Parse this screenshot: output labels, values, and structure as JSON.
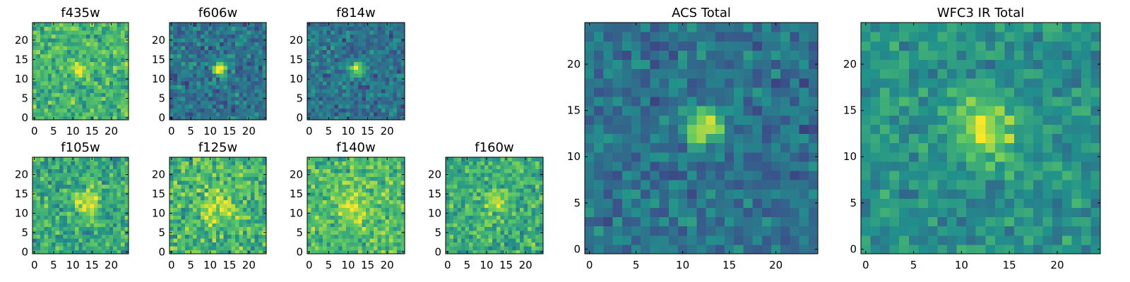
{
  "figure": {
    "description": "Multi-band cutouts of a source; viridis colormap heatmaps"
  },
  "colormap": {
    "name": "viridis",
    "stops": [
      "#440154",
      "#3b528b",
      "#21918c",
      "#5ec962",
      "#fde725"
    ]
  },
  "chart_data": [
    {
      "id": "f435w",
      "type": "heatmap",
      "title": "f435w",
      "size": 25,
      "xlim": [
        0,
        24
      ],
      "ylim": [
        0,
        24
      ],
      "xticks": [
        0,
        5,
        10,
        15,
        20
      ],
      "yticks": [
        0,
        5,
        10,
        15,
        20
      ],
      "peak": {
        "x": 12.5,
        "y": 12.5
      },
      "background": 0.66,
      "noise": 0.16,
      "amplitude": 0.33,
      "sigma": 1.6,
      "seed": 11
    },
    {
      "id": "f606w",
      "type": "heatmap",
      "title": "f606w",
      "size": 25,
      "xlim": [
        0,
        24
      ],
      "ylim": [
        0,
        24
      ],
      "xticks": [
        0,
        5,
        10,
        15,
        20
      ],
      "yticks": [
        0,
        5,
        10,
        15,
        20
      ],
      "peak": {
        "x": 12.5,
        "y": 12.8
      },
      "background": 0.38,
      "noise": 0.14,
      "amplitude": 0.6,
      "sigma": 1.3,
      "seed": 23
    },
    {
      "id": "f814w",
      "type": "heatmap",
      "title": "f814w",
      "size": 25,
      "xlim": [
        0,
        24
      ],
      "ylim": [
        0,
        24
      ],
      "xticks": [
        0,
        5,
        10,
        15,
        20
      ],
      "yticks": [
        0,
        5,
        10,
        15,
        20
      ],
      "peak": {
        "x": 12.3,
        "y": 12.8
      },
      "background": 0.38,
      "noise": 0.13,
      "amplitude": 0.6,
      "sigma": 1.3,
      "seed": 37
    },
    {
      "id": "f105w",
      "type": "heatmap",
      "title": "f105w",
      "size": 25,
      "xlim": [
        0,
        24
      ],
      "ylim": [
        0,
        24
      ],
      "xticks": [
        0,
        5,
        10,
        15,
        20
      ],
      "yticks": [
        0,
        5,
        10,
        15,
        20
      ],
      "peak": {
        "x": 13.5,
        "y": 13.0
      },
      "background": 0.6,
      "noise": 0.17,
      "amplitude": 0.35,
      "sigma": 2.5,
      "seed": 41
    },
    {
      "id": "f125w",
      "type": "heatmap",
      "title": "f125w",
      "size": 25,
      "xlim": [
        0,
        24
      ],
      "ylim": [
        0,
        24
      ],
      "xticks": [
        0,
        5,
        10,
        15,
        20
      ],
      "yticks": [
        0,
        5,
        10,
        15,
        20
      ],
      "peak": {
        "x": 12.0,
        "y": 12.0
      },
      "background": 0.66,
      "noise": 0.18,
      "amplitude": 0.25,
      "sigma": 3.0,
      "seed": 53
    },
    {
      "id": "f140w",
      "type": "heatmap",
      "title": "f140w",
      "size": 25,
      "xlim": [
        0,
        24
      ],
      "ylim": [
        0,
        24
      ],
      "xticks": [
        0,
        5,
        10,
        15,
        20
      ],
      "yticks": [
        0,
        5,
        10,
        15,
        20
      ],
      "peak": {
        "x": 12.0,
        "y": 12.0
      },
      "background": 0.68,
      "noise": 0.16,
      "amplitude": 0.25,
      "sigma": 3.2,
      "seed": 67
    },
    {
      "id": "f160w",
      "type": "heatmap",
      "title": "f160w",
      "size": 25,
      "xlim": [
        0,
        24
      ],
      "ylim": [
        0,
        24
      ],
      "xticks": [
        0,
        5,
        10,
        15,
        20
      ],
      "yticks": [
        0,
        5,
        10,
        15,
        20
      ],
      "peak": {
        "x": 12.5,
        "y": 13.0
      },
      "background": 0.62,
      "noise": 0.16,
      "amplitude": 0.33,
      "sigma": 2.0,
      "seed": 79
    },
    {
      "id": "acs-total",
      "type": "heatmap",
      "title": "ACS Total",
      "size": 25,
      "xlim": [
        0,
        24
      ],
      "ylim": [
        0,
        24
      ],
      "xticks": [
        0,
        5,
        10,
        15,
        20
      ],
      "yticks": [
        0,
        5,
        10,
        15,
        20
      ],
      "peak": {
        "x": 12.3,
        "y": 13.2
      },
      "background": 0.38,
      "noise": 0.12,
      "amplitude": 0.62,
      "sigma": 1.4,
      "seed": 97
    },
    {
      "id": "wfc3-ir-total",
      "type": "heatmap",
      "title": "WFC3 IR Total",
      "size": 25,
      "xlim": [
        0,
        24
      ],
      "ylim": [
        0,
        24
      ],
      "xticks": [
        0,
        5,
        10,
        15,
        20
      ],
      "yticks": [
        0,
        5,
        10,
        15,
        20
      ],
      "peak": {
        "x": 12.5,
        "y": 13.0
      },
      "background": 0.5,
      "noise": 0.12,
      "amplitude": 0.42,
      "sigma": 2.5,
      "seed": 113
    }
  ]
}
